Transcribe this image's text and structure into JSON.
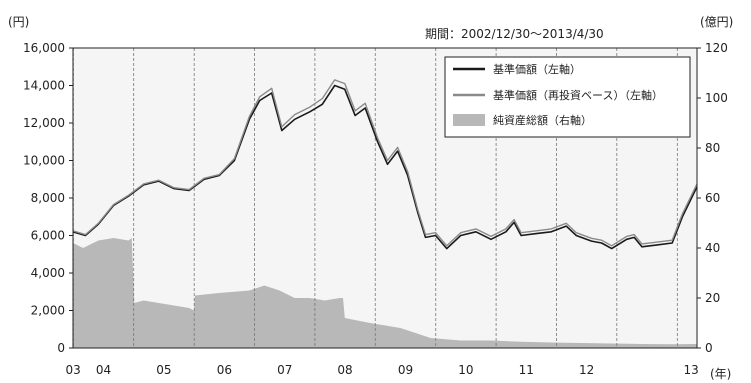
{
  "chart_data": {
    "type": "line",
    "period_label": "期間：2002/12/30～2013/4/30",
    "y_left_unit": "(円)",
    "y_right_unit": "(億円)",
    "x_unit": "(年)",
    "ylim_left": [
      0,
      16000
    ],
    "ylim_right": [
      0,
      120
    ],
    "y_left_ticks": [
      "0",
      "2,000",
      "4,000",
      "6,000",
      "8,000",
      "10,000",
      "12,000",
      "14,000",
      "16,000"
    ],
    "y_right_ticks": [
      "0",
      "20",
      "40",
      "60",
      "80",
      "100",
      "120"
    ],
    "x_ticks": [
      "03",
      "04",
      "05",
      "06",
      "07",
      "08",
      "09",
      "10",
      "11",
      "12",
      "13"
    ],
    "x_start": "2002-12-30",
    "x_end": "2013-04-30",
    "grid": "vertical dashed at year boundaries",
    "legend_position": "top-right",
    "series": [
      {
        "name": "基準価額（左軸）",
        "axis": "left",
        "kind": "line",
        "color": "#1a1a1a",
        "x": [
          "2002-12-30",
          "2003-03-15",
          "2003-06-01",
          "2003-09-01",
          "2003-12-01",
          "2004-03-01",
          "2004-06-01",
          "2004-09-01",
          "2004-12-01",
          "2005-03-01",
          "2005-06-01",
          "2005-09-01",
          "2005-12-01",
          "2006-02-01",
          "2006-04-15",
          "2006-06-15",
          "2006-09-01",
          "2006-12-01",
          "2007-02-15",
          "2007-05-01",
          "2007-07-01",
          "2007-09-01",
          "2007-11-01",
          "2008-01-15",
          "2008-03-15",
          "2008-05-15",
          "2008-07-15",
          "2008-09-15",
          "2008-10-31",
          "2008-12-31",
          "2009-03-09",
          "2009-06-01",
          "2009-09-01",
          "2009-12-01",
          "2010-03-01",
          "2010-04-20",
          "2010-06-01",
          "2010-09-01",
          "2010-12-01",
          "2011-03-01",
          "2011-05-01",
          "2011-08-01",
          "2011-10-01",
          "2011-12-01",
          "2012-03-01",
          "2012-04-15",
          "2012-06-01",
          "2012-09-01",
          "2012-12-01",
          "2013-02-01",
          "2013-04-30"
        ],
        "values": [
          6200,
          6000,
          6600,
          7600,
          8100,
          8700,
          8900,
          8500,
          8400,
          9000,
          9200,
          10000,
          12200,
          13200,
          13600,
          11600,
          12200,
          12600,
          13000,
          14000,
          13800,
          12400,
          12800,
          11000,
          9800,
          10500,
          9200,
          7200,
          5900,
          6000,
          5300,
          6000,
          6200,
          5800,
          6200,
          6700,
          6000,
          6100,
          6200,
          6500,
          6000,
          5700,
          5600,
          5300,
          5800,
          5900,
          5400,
          5500,
          5600,
          7000,
          8600
        ]
      },
      {
        "name": "基準価額（再投資ベース）（左軸）",
        "axis": "left",
        "kind": "line",
        "color": "#8a8a8a",
        "x": [
          "2002-12-30",
          "2003-03-15",
          "2003-06-01",
          "2003-09-01",
          "2003-12-01",
          "2004-03-01",
          "2004-06-01",
          "2004-09-01",
          "2004-12-01",
          "2005-03-01",
          "2005-06-01",
          "2005-09-01",
          "2005-12-01",
          "2006-02-01",
          "2006-04-15",
          "2006-06-15",
          "2006-09-01",
          "2006-12-01",
          "2007-02-15",
          "2007-05-01",
          "2007-07-01",
          "2007-09-01",
          "2007-11-01",
          "2008-01-15",
          "2008-03-15",
          "2008-05-15",
          "2008-07-15",
          "2008-09-15",
          "2008-10-31",
          "2008-12-31",
          "2009-03-09",
          "2009-06-01",
          "2009-09-01",
          "2009-12-01",
          "2010-03-01",
          "2010-04-20",
          "2010-06-01",
          "2010-09-01",
          "2010-12-01",
          "2011-03-01",
          "2011-05-01",
          "2011-08-01",
          "2011-10-01",
          "2011-12-01",
          "2012-03-01",
          "2012-04-15",
          "2012-06-01",
          "2012-09-01",
          "2012-12-01",
          "2013-02-01",
          "2013-04-30"
        ],
        "values": [
          6250,
          6050,
          6650,
          7650,
          8150,
          8750,
          8950,
          8550,
          8450,
          9050,
          9250,
          10100,
          12350,
          13400,
          13850,
          11800,
          12450,
          12850,
          13300,
          14300,
          14100,
          12650,
          13050,
          11200,
          10000,
          10700,
          9400,
          7350,
          6050,
          6150,
          5450,
          6150,
          6350,
          5950,
          6350,
          6850,
          6150,
          6250,
          6350,
          6650,
          6150,
          5850,
          5750,
          5450,
          5950,
          6050,
          5550,
          5650,
          5750,
          7150,
          8750
        ]
      },
      {
        "name": "純資産総額（右軸）",
        "axis": "right",
        "kind": "area",
        "color": "#b8b8b8",
        "x": [
          "2002-12-30",
          "2003-03-01",
          "2003-06-01",
          "2003-09-01",
          "2003-12-01",
          "2003-12-20",
          "2004-01-05",
          "2004-03-01",
          "2004-06-01",
          "2004-09-01",
          "2004-12-01",
          "2004-12-31",
          "2005-01-05",
          "2005-06-01",
          "2005-12-01",
          "2006-03-01",
          "2006-06-01",
          "2006-09-01",
          "2006-12-01",
          "2007-03-01",
          "2007-06-01",
          "2007-06-20",
          "2007-07-01",
          "2007-12-01",
          "2008-06-01",
          "2008-09-01",
          "2008-12-01",
          "2009-06-01",
          "2009-12-01",
          "2010-06-01",
          "2010-12-01",
          "2011-06-01",
          "2011-12-01",
          "2012-06-01",
          "2012-12-01",
          "2013-04-30"
        ],
        "values": [
          42,
          40,
          43,
          44,
          43,
          44,
          18,
          19,
          18,
          17,
          16,
          15,
          21,
          22,
          23,
          25,
          23,
          20,
          20,
          19,
          20,
          20,
          12,
          10,
          8,
          6,
          4,
          3,
          3,
          2.5,
          2.2,
          2,
          1.8,
          1.6,
          1.5,
          1.6
        ]
      }
    ]
  }
}
